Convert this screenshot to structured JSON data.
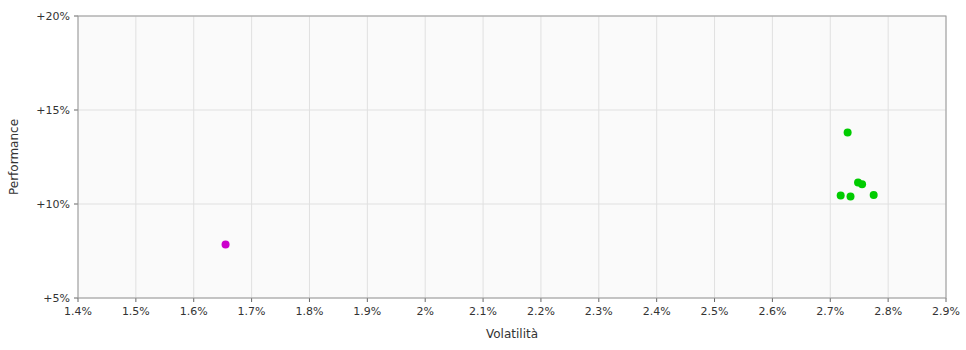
{
  "chart_data": {
    "type": "scatter",
    "xlabel": "Volatilità",
    "ylabel": "Performance",
    "xlim": [
      0.014,
      0.029
    ],
    "ylim": [
      0.05,
      0.2
    ],
    "xticks": [
      {
        "value": 0.014,
        "label": "1.4%"
      },
      {
        "value": 0.015,
        "label": "1.5%"
      },
      {
        "value": 0.016,
        "label": "1.6%"
      },
      {
        "value": 0.017,
        "label": "1.7%"
      },
      {
        "value": 0.018,
        "label": "1.8%"
      },
      {
        "value": 0.019,
        "label": "1.9%"
      },
      {
        "value": 0.02,
        "label": "2%"
      },
      {
        "value": 0.021,
        "label": "2.1%"
      },
      {
        "value": 0.022,
        "label": "2.2%"
      },
      {
        "value": 0.023,
        "label": "2.3%"
      },
      {
        "value": 0.024,
        "label": "2.4%"
      },
      {
        "value": 0.025,
        "label": "2.5%"
      },
      {
        "value": 0.026,
        "label": "2.6%"
      },
      {
        "value": 0.027,
        "label": "2.7%"
      },
      {
        "value": 0.028,
        "label": "2.8%"
      },
      {
        "value": 0.029,
        "label": "2.9%"
      }
    ],
    "yticks": [
      {
        "value": 0.05,
        "label": "+5%"
      },
      {
        "value": 0.1,
        "label": "+10%"
      },
      {
        "value": 0.15,
        "label": "+15%"
      },
      {
        "value": 0.2,
        "label": "+20%"
      }
    ],
    "grid": true,
    "series": [
      {
        "color": "#00cc00",
        "x": [
          0.0273,
          0.02748,
          0.02755,
          0.02718,
          0.02735,
          0.02775
        ],
        "values": [
          0.138,
          0.1115,
          0.1105,
          0.1045,
          0.104,
          0.1048
        ]
      },
      {
        "color": "#cc00cc",
        "x": [
          0.01655
        ],
        "values": [
          0.0785
        ]
      }
    ]
  }
}
